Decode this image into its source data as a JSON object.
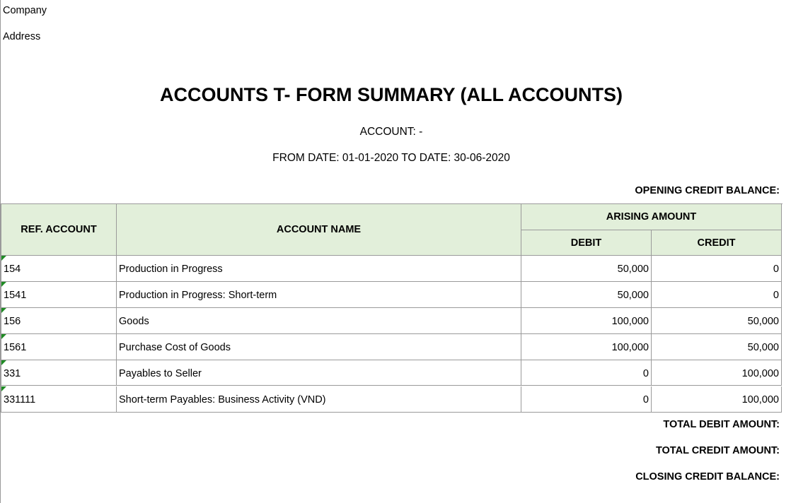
{
  "header": {
    "company": "Company",
    "address": "Address",
    "title": "ACCOUNTS T- FORM SUMMARY (ALL ACCOUNTS)",
    "account": "ACCOUNT:  -",
    "date_range": "FROM DATE: 01-01-2020 TO DATE: 30-06-2020",
    "opening": "OPENING CREDIT BALANCE:"
  },
  "table": {
    "columns": {
      "ref": "REF. ACCOUNT",
      "name": "ACCOUNT NAME",
      "arising": "ARISING AMOUNT",
      "debit": "DEBIT",
      "credit": "CREDIT"
    },
    "rows": [
      [
        "154",
        "Production in Progress",
        "50,000",
        "0"
      ],
      [
        "1541",
        "Production in Progress: Short-term",
        "50,000",
        "0"
      ],
      [
        "156",
        "Goods",
        "100,000",
        "50,000"
      ],
      [
        "1561",
        "Purchase Cost of Goods",
        "100,000",
        "50,000"
      ],
      [
        "331",
        "Payables to Seller",
        "0",
        "100,000"
      ],
      [
        "331111",
        "Short-term Payables: Business Activity (VND)",
        "0",
        "100,000"
      ]
    ]
  },
  "footer": {
    "total_debit": "TOTAL DEBIT AMOUNT:",
    "total_credit": "TOTAL CREDIT AMOUNT:",
    "closing": "CLOSING CREDIT BALANCE:"
  }
}
